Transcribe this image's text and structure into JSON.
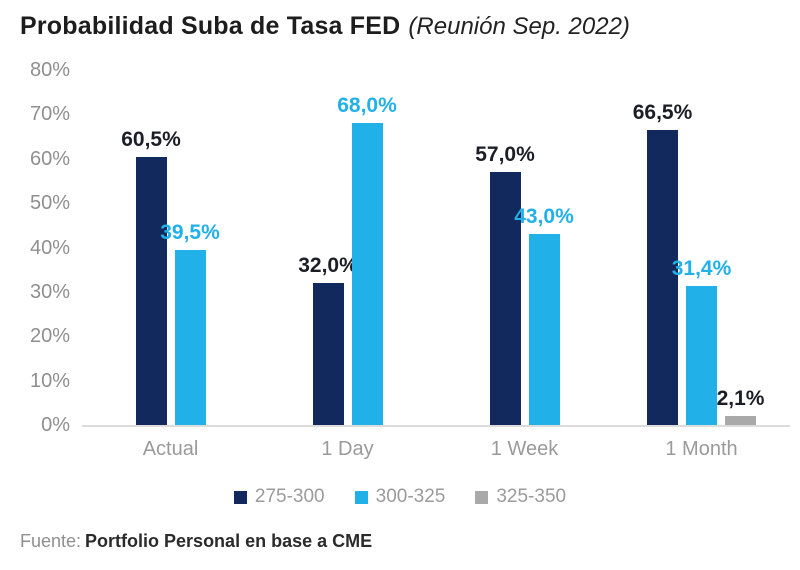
{
  "header": {
    "title": "Probabilidad Suba de Tasa FED",
    "subtitle": "(Reunión Sep. 2022)"
  },
  "chart_data": {
    "type": "bar",
    "title": "Probabilidad Suba de Tasa FED",
    "subtitle": "(Reunión Sep. 2022)",
    "categories": [
      "Actual",
      "1 Day",
      "1 Week",
      "1 Month"
    ],
    "series": [
      {
        "name": "275-300",
        "color": "#12295e",
        "label_color": "#1d1d27",
        "values": [
          60.5,
          32.0,
          57.0,
          66.5
        ],
        "labels": [
          "60,5%",
          "32,0%",
          "57,0%",
          "66,5%"
        ]
      },
      {
        "name": "300-325",
        "color": "#22b0e8",
        "label_color": "#22b0e8",
        "values": [
          39.5,
          68.0,
          43.0,
          31.4
        ],
        "labels": [
          "39,5%",
          "68,0%",
          "43,0%",
          "31,4%"
        ]
      },
      {
        "name": "325-350",
        "color": "#a9a9a9",
        "label_color": "#1d1d27",
        "values": [
          null,
          null,
          null,
          2.1
        ],
        "labels": [
          null,
          null,
          null,
          "2,1%"
        ]
      }
    ],
    "ylabel": "",
    "xlabel": "",
    "ylim": [
      0,
      80
    ],
    "yticks": [
      "0%",
      "10%",
      "20%",
      "30%",
      "40%",
      "50%",
      "60%",
      "70%",
      "80%"
    ],
    "grid": false,
    "legend_position": "bottom"
  },
  "footer": {
    "prefix": "Fuente:",
    "bold": "Portfolio Personal en base a CME"
  }
}
